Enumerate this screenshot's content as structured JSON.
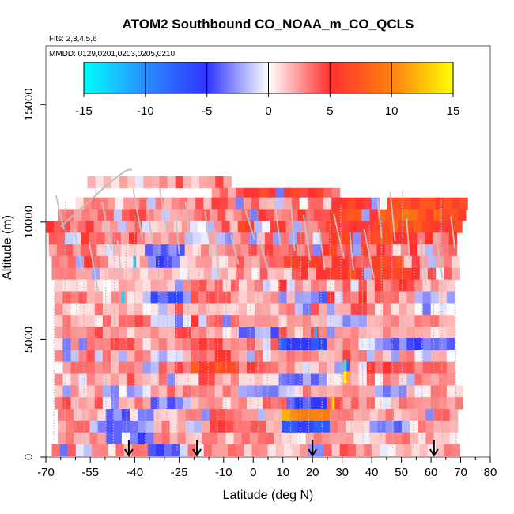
{
  "chart_data": {
    "type": "heatmap",
    "title": "ATOM2 Southbound CO_NOAA_m_CO_QCLS",
    "subtitle": "Flts: 2,3,4,5,6",
    "date_note": "MMDD: 0129,0201,0203,0205,0210",
    "xlabel": "Latitude (deg N)",
    "ylabel": "Altitude (m)",
    "xlim": [
      -70,
      80
    ],
    "ylim": [
      0,
      17500
    ],
    "x_ticks": [
      -70,
      -55,
      -40,
      -25,
      -10,
      0,
      10,
      20,
      30,
      40,
      50,
      60,
      70,
      80
    ],
    "x_ticks_minor": [
      -65,
      -60,
      -50,
      -45,
      -35,
      -30,
      -20,
      -15,
      -5,
      5,
      15,
      25,
      35,
      45,
      55,
      65,
      75
    ],
    "y_ticks": [
      0,
      5000,
      10000,
      15000
    ],
    "colorbar": {
      "range": [
        -15,
        15
      ],
      "ticks": [
        -15,
        -10,
        -5,
        0,
        5,
        10,
        15
      ],
      "stops": [
        {
          "v": -15,
          "color": "#00ffff"
        },
        {
          "v": -10,
          "color": "#2a8cff"
        },
        {
          "v": -5,
          "color": "#2f34ff"
        },
        {
          "v": 0,
          "color": "#ffffff"
        },
        {
          "v": 5,
          "color": "#ff3030"
        },
        {
          "v": 10,
          "color": "#ff8010"
        },
        {
          "v": 15,
          "color": "#ffff00"
        }
      ]
    },
    "profile_markers_lat": [
      -42,
      -19,
      20,
      61
    ],
    "layers": [
      {
        "alt": 11700,
        "lat_min": -56,
        "lat_max": -8,
        "pattern": [
          2,
          2,
          3,
          3,
          2,
          3
        ]
      },
      {
        "alt": 11200,
        "lat_min": -14,
        "lat_max": 28,
        "pattern": [
          3,
          5,
          6,
          6,
          5,
          4
        ]
      },
      {
        "alt": 10800,
        "lat_min": -60,
        "lat_max": 71,
        "pattern": [
          2,
          3,
          3,
          4,
          3,
          5,
          6,
          7,
          6
        ]
      },
      {
        "alt": 10300,
        "lat_min": -66,
        "lat_max": 71,
        "pattern": [
          3,
          4,
          3,
          3,
          4,
          5,
          6,
          8,
          7
        ]
      },
      {
        "alt": 9800,
        "lat_min": -70,
        "lat_max": 71,
        "pattern": [
          4,
          3,
          2,
          3,
          5,
          4,
          6,
          7,
          6
        ]
      },
      {
        "alt": 9300,
        "lat_min": -69,
        "lat_max": 69,
        "pattern": [
          5,
          4,
          2,
          -2,
          3,
          4,
          5,
          6,
          4
        ]
      },
      {
        "alt": 8800,
        "lat_min": -69,
        "lat_max": 69,
        "pattern": [
          3,
          2,
          -3,
          2,
          4,
          3,
          5,
          4,
          3
        ]
      },
      {
        "alt": 8300,
        "lat_min": -68,
        "lat_max": 69,
        "pattern": [
          4,
          2,
          -4,
          2,
          3,
          5,
          4,
          6,
          3
        ]
      },
      {
        "alt": 7800,
        "lat_min": -68,
        "lat_max": 69,
        "pattern": [
          3,
          2,
          1,
          2,
          3,
          4,
          6,
          5,
          3
        ]
      },
      {
        "alt": 7300,
        "lat_min": -67,
        "lat_max": 68,
        "pattern": [
          2,
          1,
          2,
          3,
          2,
          4,
          3,
          4,
          2
        ]
      },
      {
        "alt": 6800,
        "lat_min": -67,
        "lat_max": 68,
        "pattern": [
          3,
          2,
          -5,
          3,
          2,
          -3,
          4,
          3,
          -2
        ]
      },
      {
        "alt": 6300,
        "lat_min": -67,
        "lat_max": 68,
        "pattern": [
          2,
          1,
          3,
          2,
          2,
          3,
          3,
          2,
          1
        ]
      },
      {
        "alt": 5800,
        "lat_min": -67,
        "lat_max": 68,
        "pattern": [
          2,
          3,
          -2,
          4,
          3,
          2,
          -2,
          3,
          2
        ]
      },
      {
        "alt": 5300,
        "lat_min": -67,
        "lat_max": 68,
        "pattern": [
          3,
          2,
          3,
          2,
          -3,
          4,
          2,
          3,
          2
        ]
      },
      {
        "alt": 4800,
        "lat_min": -67,
        "lat_max": 68,
        "pattern": [
          2,
          3,
          2,
          4,
          3,
          -6,
          2,
          -3,
          -4
        ]
      },
      {
        "alt": 4300,
        "lat_min": -67,
        "lat_max": 68,
        "pattern": [
          3,
          2,
          -2,
          4,
          3,
          2,
          3,
          2,
          1
        ]
      },
      {
        "alt": 3800,
        "lat_min": -67,
        "lat_max": 68,
        "pattern": [
          3,
          2,
          4,
          7,
          4,
          2,
          3,
          4,
          3
        ]
      },
      {
        "alt": 3300,
        "lat_min": -67,
        "lat_max": 69,
        "pattern": [
          2,
          3,
          2,
          3,
          2,
          -3,
          2,
          3,
          2
        ]
      },
      {
        "alt": 2800,
        "lat_min": -67,
        "lat_max": 70,
        "pattern": [
          2,
          -2,
          3,
          2,
          -3,
          3,
          2,
          -2,
          2
        ]
      },
      {
        "alt": 2300,
        "lat_min": -67,
        "lat_max": 70,
        "pattern": [
          3,
          2,
          -3,
          2,
          3,
          -5,
          3,
          2,
          3
        ]
      },
      {
        "alt": 1800,
        "lat_min": -66,
        "lat_max": 70,
        "pattern": [
          2,
          -4,
          2,
          3,
          2,
          11,
          3,
          2,
          3
        ]
      },
      {
        "alt": 1300,
        "lat_min": -66,
        "lat_max": 70,
        "pattern": [
          3,
          -3,
          2,
          4,
          3,
          -7,
          2,
          -3,
          2
        ]
      },
      {
        "alt": 800,
        "lat_min": -66,
        "lat_max": 70,
        "pattern": [
          2,
          -4,
          3,
          2,
          3,
          2,
          1,
          2,
          2
        ]
      },
      {
        "alt": 300,
        "lat_min": -68,
        "lat_max": 70,
        "pattern": [
          3,
          2,
          -4,
          3,
          2,
          2,
          3,
          1,
          2
        ]
      }
    ],
    "hotspots": [
      {
        "lat": 31,
        "alt": 3900,
        "value": -14
      },
      {
        "lat": 32,
        "alt": 3900,
        "value": -8
      },
      {
        "lat": 31,
        "alt": 3400,
        "value": 15
      },
      {
        "lat": 32,
        "alt": 3400,
        "value": 12
      },
      {
        "lat": 27,
        "alt": 2300,
        "value": 13
      },
      {
        "lat": 21,
        "alt": 5300,
        "value": -12
      },
      {
        "lat": -40,
        "alt": 8300,
        "value": -12
      },
      {
        "lat": -44,
        "alt": 6800,
        "value": -13
      }
    ]
  }
}
